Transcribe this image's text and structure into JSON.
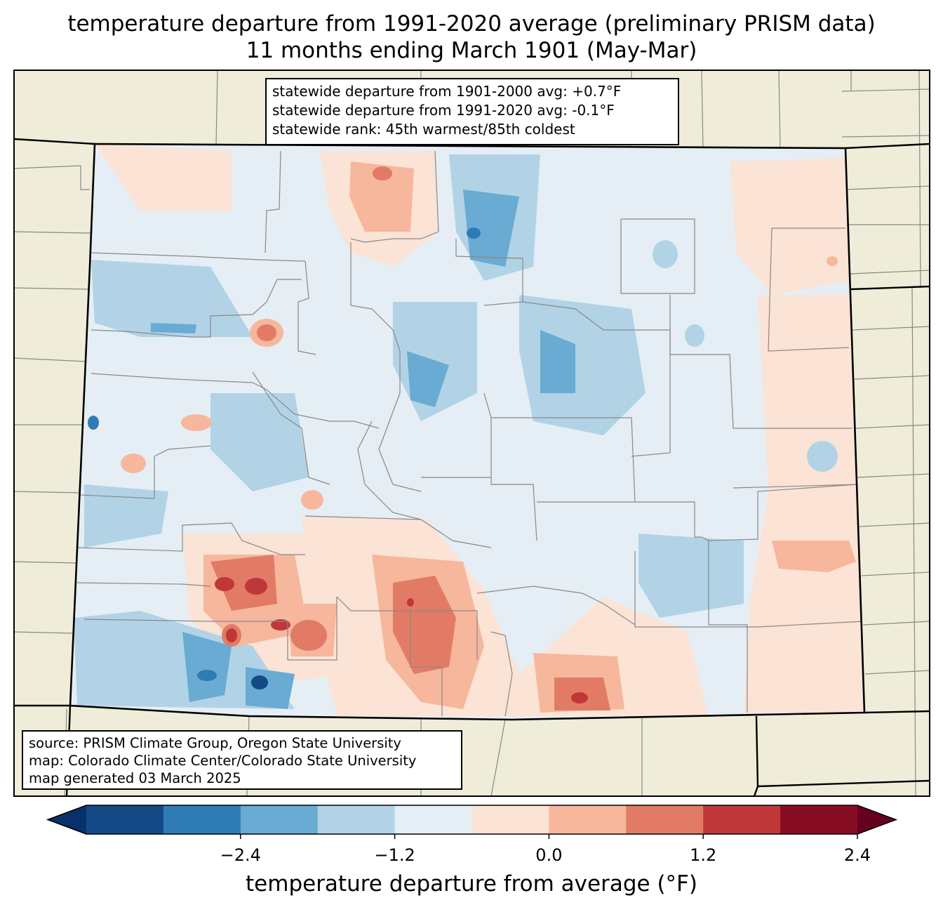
{
  "title": {
    "line1": "temperature departure from 1991-2020 average (preliminary PRISM data)",
    "line2": "11 months ending March 1901 (May-Mar)"
  },
  "stats": {
    "line1": "statewide departure from 1901-2000 avg: +0.7°F",
    "line2": "statewide departure from 1991-2020 avg: -0.1°F",
    "line3": "statewide rank: 45th warmest/85th coldest"
  },
  "source": {
    "line1": "source: PRISM Climate Group, Oregon State University",
    "line2": "map: Colorado Climate Center/Colorado State University",
    "line3": "map generated 03 March 2025"
  },
  "colorbar": {
    "label": "temperature departure from average (°F)",
    "ticks": [
      "−2.4",
      "−1.2",
      "0.0",
      "1.2",
      "2.4"
    ],
    "colors": [
      "#08306b",
      "#144a86",
      "#2f7bb6",
      "#69abd2",
      "#b2d3e6",
      "#e5eef5",
      "#fbe3d6",
      "#f6b79c",
      "#e27b65",
      "#c0373a",
      "#870d23",
      "#67001f"
    ]
  },
  "map": {
    "land_color": "#efedd9",
    "region": "Colorado"
  }
}
